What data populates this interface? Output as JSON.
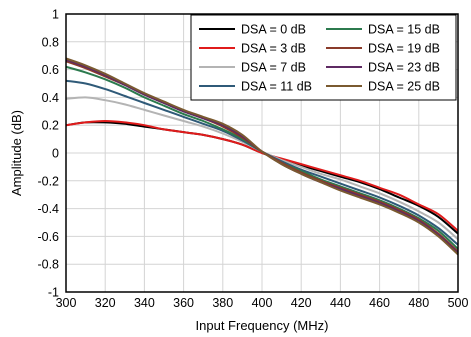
{
  "chart_data": {
    "type": "line",
    "xlabel": "Input Frequency (MHz)",
    "ylabel": "Amplitude (dB)",
    "xlim": [
      300,
      500
    ],
    "ylim": [
      -1,
      1
    ],
    "xticks": [
      300,
      320,
      340,
      360,
      380,
      400,
      420,
      440,
      460,
      480,
      500
    ],
    "yticks": [
      1,
      0.8,
      0.6,
      0.4,
      0.2,
      0,
      -0.2,
      -0.4,
      -0.6,
      -0.8,
      -1
    ],
    "grid": true,
    "legend_position": "top-right",
    "series": [
      {
        "name": "DSA = 0 dB",
        "color": "#000000",
        "x": [
          300,
          310,
          320,
          330,
          340,
          350,
          360,
          370,
          380,
          390,
          400,
          410,
          420,
          430,
          440,
          450,
          460,
          470,
          480,
          490,
          500
        ],
        "y": [
          0.2,
          0.22,
          0.22,
          0.21,
          0.19,
          0.17,
          0.15,
          0.13,
          0.1,
          0.06,
          0.0,
          -0.05,
          -0.09,
          -0.13,
          -0.17,
          -0.21,
          -0.26,
          -0.32,
          -0.38,
          -0.46,
          -0.58
        ]
      },
      {
        "name": "DSA = 3 dB",
        "color": "#e01b1b",
        "x": [
          300,
          310,
          320,
          330,
          340,
          350,
          360,
          370,
          380,
          390,
          400,
          410,
          420,
          430,
          440,
          450,
          460,
          470,
          480,
          490,
          500
        ],
        "y": [
          0.2,
          0.22,
          0.23,
          0.22,
          0.2,
          0.17,
          0.15,
          0.13,
          0.1,
          0.06,
          0.0,
          -0.04,
          -0.08,
          -0.12,
          -0.16,
          -0.2,
          -0.25,
          -0.3,
          -0.37,
          -0.44,
          -0.56
        ]
      },
      {
        "name": "DSA = 7 dB",
        "color": "#b4b4b4",
        "x": [
          300,
          310,
          320,
          330,
          340,
          350,
          360,
          370,
          380,
          390,
          400,
          410,
          420,
          430,
          440,
          450,
          460,
          470,
          480,
          490,
          500
        ],
        "y": [
          0.39,
          0.4,
          0.38,
          0.35,
          0.31,
          0.27,
          0.23,
          0.19,
          0.14,
          0.08,
          0.01,
          -0.05,
          -0.1,
          -0.15,
          -0.19,
          -0.24,
          -0.29,
          -0.35,
          -0.42,
          -0.5,
          -0.62
        ]
      },
      {
        "name": "DSA = 11 dB",
        "color": "#2f5a78",
        "x": [
          300,
          310,
          320,
          330,
          340,
          350,
          360,
          370,
          380,
          390,
          400,
          410,
          420,
          430,
          440,
          450,
          460,
          470,
          480,
          490,
          500
        ],
        "y": [
          0.52,
          0.5,
          0.46,
          0.41,
          0.36,
          0.31,
          0.26,
          0.21,
          0.16,
          0.09,
          0.01,
          -0.06,
          -0.12,
          -0.17,
          -0.22,
          -0.27,
          -0.32,
          -0.38,
          -0.45,
          -0.54,
          -0.66
        ]
      },
      {
        "name": "DSA = 15 dB",
        "color": "#2c7a4e",
        "x": [
          300,
          310,
          320,
          330,
          340,
          350,
          360,
          370,
          380,
          390,
          400,
          410,
          420,
          430,
          440,
          450,
          460,
          470,
          480,
          490,
          500
        ],
        "y": [
          0.62,
          0.58,
          0.53,
          0.47,
          0.4,
          0.34,
          0.28,
          0.23,
          0.17,
          0.1,
          0.01,
          -0.07,
          -0.13,
          -0.19,
          -0.24,
          -0.29,
          -0.34,
          -0.4,
          -0.47,
          -0.56,
          -0.69
        ]
      },
      {
        "name": "DSA = 19 dB",
        "color": "#8a3b2a",
        "x": [
          300,
          310,
          320,
          330,
          340,
          350,
          360,
          370,
          380,
          390,
          400,
          410,
          420,
          430,
          440,
          450,
          460,
          470,
          480,
          490,
          500
        ],
        "y": [
          0.66,
          0.61,
          0.55,
          0.49,
          0.42,
          0.36,
          0.3,
          0.25,
          0.19,
          0.11,
          0.01,
          -0.07,
          -0.14,
          -0.2,
          -0.25,
          -0.3,
          -0.35,
          -0.41,
          -0.48,
          -0.58,
          -0.71
        ]
      },
      {
        "name": "DSA = 23 dB",
        "color": "#5e2a63",
        "x": [
          300,
          310,
          320,
          330,
          340,
          350,
          360,
          370,
          380,
          390,
          400,
          410,
          420,
          430,
          440,
          450,
          460,
          470,
          480,
          490,
          500
        ],
        "y": [
          0.67,
          0.62,
          0.56,
          0.49,
          0.42,
          0.36,
          0.3,
          0.25,
          0.2,
          0.12,
          0.01,
          -0.08,
          -0.15,
          -0.21,
          -0.26,
          -0.31,
          -0.36,
          -0.42,
          -0.49,
          -0.59,
          -0.72
        ]
      },
      {
        "name": "DSA = 25 dB",
        "color": "#7a5a30",
        "x": [
          300,
          310,
          320,
          330,
          340,
          350,
          360,
          370,
          380,
          390,
          400,
          410,
          420,
          430,
          440,
          450,
          460,
          470,
          480,
          490,
          500
        ],
        "y": [
          0.68,
          0.63,
          0.57,
          0.5,
          0.43,
          0.37,
          0.31,
          0.26,
          0.21,
          0.13,
          0.01,
          -0.08,
          -0.15,
          -0.21,
          -0.27,
          -0.32,
          -0.37,
          -0.43,
          -0.5,
          -0.6,
          -0.73
        ]
      }
    ]
  }
}
